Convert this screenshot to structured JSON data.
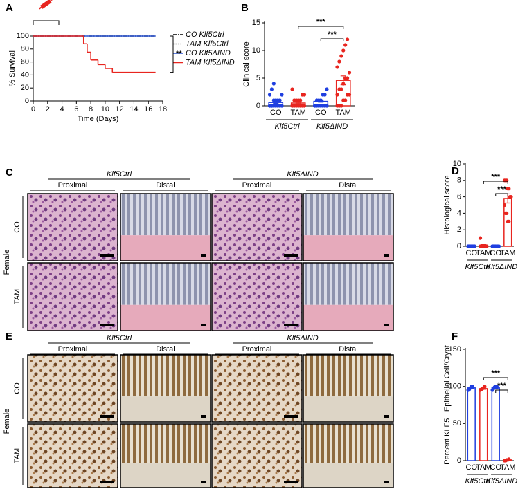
{
  "chart_data": [
    {
      "label": "A",
      "type": "line",
      "step": true,
      "ylabel": "% Survival",
      "xlabel": "Time (Days)",
      "xlim": [
        0,
        18
      ],
      "xticks": [
        0,
        2,
        4,
        6,
        8,
        10,
        12,
        14,
        16,
        18
      ],
      "ylim": [
        0,
        100
      ],
      "yticks": [
        0,
        20,
        40,
        60,
        80,
        100
      ],
      "legend": "right",
      "annotation": "**",
      "series": [
        {
          "name": "CO Klf5Ctrl",
          "color": "#000000",
          "dash": "dashdot",
          "x": [
            0,
            17
          ],
          "values": [
            100,
            100
          ]
        },
        {
          "name": "TAM Klf5Ctrl",
          "color": "#8c8c8c",
          "dash": "dotted",
          "x": [
            0,
            17
          ],
          "values": [
            100,
            100
          ]
        },
        {
          "name": "CO Klf5ΔIND",
          "color": "#2a55d6",
          "dash": "solid",
          "x": [
            0,
            17
          ],
          "values": [
            100,
            100
          ]
        },
        {
          "name": "TAM Klf5ΔIND",
          "color": "#e8251f",
          "dash": "solid",
          "x": [
            0,
            7,
            7.5,
            8,
            9,
            10,
            11,
            17
          ],
          "values": [
            100,
            88,
            75,
            63,
            56,
            50,
            44,
            44
          ]
        }
      ]
    },
    {
      "label": "B",
      "type": "bar",
      "ylabel": "Clinical score",
      "categories": [
        "CO",
        "TAM",
        "CO",
        "TAM"
      ],
      "groups": [
        "Klf5Ctrl",
        "Klf5ΔIND"
      ],
      "colors": [
        "#1f3fe0",
        "#e8251f",
        "#1f3fe0",
        "#e8251f"
      ],
      "values": [
        0.6,
        0.5,
        0.8,
        4.6
      ],
      "errors": [
        0.15,
        0.15,
        0.15,
        0.8
      ],
      "points": [
        [
          0,
          0,
          0,
          0,
          0,
          0,
          0,
          0,
          0,
          1,
          1,
          1,
          1,
          2,
          2,
          3,
          4
        ],
        [
          0,
          0,
          0,
          0,
          0,
          0,
          0,
          0,
          1,
          1,
          1,
          1,
          2,
          2,
          3
        ],
        [
          0,
          0,
          0,
          0,
          0,
          0,
          0,
          0,
          1,
          1,
          1,
          2,
          2,
          3
        ],
        [
          0,
          0,
          0,
          1,
          1,
          2,
          2,
          2,
          3,
          3,
          4,
          5,
          5,
          6,
          7,
          8,
          9,
          10,
          11,
          12
        ]
      ],
      "ylim": [
        0,
        15
      ],
      "yticks": [
        0,
        5,
        10,
        15
      ],
      "significance": [
        "***",
        "***"
      ]
    },
    {
      "label": "D",
      "type": "bar",
      "ylabel": "Histological score",
      "categories": [
        "CO",
        "TAM",
        "CO",
        "TAM"
      ],
      "groups": [
        "Klf5Ctrl",
        "Klf5ΔIND"
      ],
      "colors": [
        "#1f3fe0",
        "#e8251f",
        "#1f3fe0",
        "#e8251f"
      ],
      "values": [
        0,
        0.1,
        0,
        5.8
      ],
      "errors": [
        0,
        0.1,
        0,
        0.55
      ],
      "points": [
        [
          0,
          0,
          0,
          0,
          0,
          0,
          0,
          0
        ],
        [
          0,
          0,
          0,
          0,
          0,
          0,
          0,
          1
        ],
        [
          0,
          0,
          0,
          0,
          0,
          0,
          0,
          0
        ],
        [
          8,
          8,
          8,
          7,
          7,
          6,
          6,
          5,
          4,
          4,
          3,
          3
        ]
      ],
      "ylim": [
        0,
        10
      ],
      "yticks": [
        0,
        2,
        4,
        6,
        8,
        10
      ],
      "significance": [
        "***",
        "***"
      ]
    },
    {
      "label": "F",
      "type": "bar",
      "ylabel": "Percent KLF5+ Epithelial Cell/Crypt",
      "categories": [
        "CO",
        "TAM",
        "CO",
        "TAM"
      ],
      "groups": [
        "Klf5Ctrl",
        "Klf5ΔIND"
      ],
      "colors": [
        "#1f3fe0",
        "#e8251f",
        "#1f3fe0",
        "#e8251f"
      ],
      "values": [
        98,
        97,
        98,
        1
      ],
      "errors": [
        1,
        1,
        1,
        0.4
      ],
      "points": [
        [
          95,
          96,
          98,
          100,
          100
        ],
        [
          95,
          96,
          97,
          98,
          100
        ],
        [
          95,
          97,
          99,
          100,
          100
        ],
        [
          0,
          0,
          1,
          1,
          2
        ]
      ],
      "ylim": [
        0,
        150
      ],
      "yticks": [
        0,
        50,
        100,
        150
      ],
      "significance": [
        "***",
        "***"
      ]
    }
  ],
  "histology": [
    {
      "label": "C",
      "stain": "he",
      "groups": [
        "Klf5Ctrl",
        "Klf5ΔIND"
      ],
      "regions": [
        "Proximal",
        "Distal",
        "Proximal",
        "Distal"
      ],
      "sex": "Female",
      "rows": [
        "CO",
        "TAM"
      ]
    },
    {
      "label": "E",
      "stain": "ihc",
      "groups": [
        "Klf5Ctrl",
        "Klf5ΔIND"
      ],
      "regions": [
        "Proximal",
        "Distal",
        "Proximal",
        "Distal"
      ],
      "sex": "Female",
      "rows": [
        "CO",
        "TAM"
      ]
    }
  ]
}
